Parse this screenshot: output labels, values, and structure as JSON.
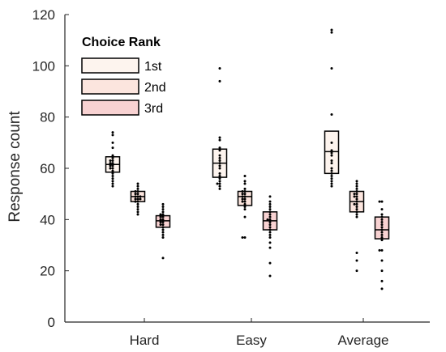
{
  "chart_data": {
    "type": "box",
    "categories": [
      "Hard",
      "Easy",
      "Average"
    ],
    "ylabel": "Response count",
    "xlabel": "",
    "ylim": [
      0,
      120
    ],
    "yticks": [
      0,
      20,
      40,
      60,
      80,
      100,
      120
    ],
    "grid": false,
    "legend": {
      "title": "Choice Rank",
      "position": "top-left",
      "entries": [
        "1st",
        "2nd",
        "3rd"
      ]
    },
    "series": [
      {
        "name": "1st",
        "color": "#fdf4ee",
        "boxes": [
          {
            "q1": 58.5,
            "median": 61.5,
            "q3": 64.5,
            "points": [
              74,
              73,
              70,
              68,
              65,
              64,
              63,
              63,
              62,
              62,
              61,
              61,
              60,
              60,
              59,
              58,
              57,
              56,
              55,
              54,
              53
            ]
          },
          {
            "q1": 56.5,
            "median": 62,
            "q3": 67.5,
            "points": [
              99,
              94,
              72,
              71,
              68,
              67,
              65,
              64,
              63,
              62,
              61,
              60,
              58,
              57,
              56,
              55,
              54,
              54,
              53,
              52
            ]
          },
          {
            "q1": 58,
            "median": 66.5,
            "q3": 74.5,
            "points": [
              114,
              113,
              99,
              81,
              70,
              67,
              66,
              65,
              63,
              62,
              60,
              59,
              58,
              57,
              56,
              55,
              54,
              53
            ]
          }
        ]
      },
      {
        "name": "2nd",
        "color": "#fce5de",
        "boxes": [
          {
            "q1": 47,
            "median": 49,
            "q3": 51,
            "points": [
              54,
              53,
              52,
              51,
              51,
              50,
              50,
              49,
              49,
              49,
              48,
              48,
              48,
              47,
              47,
              46,
              45,
              44,
              43,
              42
            ]
          },
          {
            "q1": 45.5,
            "median": 49,
            "q3": 51,
            "points": [
              57,
              55,
              54,
              52,
              51,
              51,
              50,
              50,
              49,
              49,
              48,
              48,
              47,
              47,
              46,
              45,
              44,
              41,
              33,
              33
            ]
          },
          {
            "q1": 43,
            "median": 47,
            "q3": 51,
            "points": [
              55,
              54,
              53,
              52,
              51,
              50,
              50,
              49,
              49,
              48,
              47,
              46,
              46,
              45,
              44,
              43,
              42,
              41,
              27,
              24,
              20
            ]
          }
        ]
      },
      {
        "name": "3rd",
        "color": "#f8d2d2",
        "boxes": [
          {
            "q1": 37,
            "median": 39.5,
            "q3": 41.5,
            "points": [
              46,
              45,
              44,
              43,
              42,
              42,
              41,
              41,
              40,
              40,
              39,
              39,
              38,
              38,
              37,
              36,
              35,
              34,
              33,
              25
            ]
          },
          {
            "q1": 36,
            "median": 39.5,
            "q3": 43,
            "points": [
              49,
              47,
              46,
              45,
              44,
              43,
              42,
              41,
              40,
              40,
              39,
              38,
              37,
              36,
              35,
              34,
              33,
              31,
              29,
              23,
              18
            ]
          },
          {
            "q1": 32.5,
            "median": 36,
            "q3": 41,
            "points": [
              47,
              47,
              44,
              42,
              41,
              40,
              39,
              38,
              37,
              36,
              35,
              34,
              33,
              32,
              28,
              28,
              24,
              20,
              16,
              13
            ]
          }
        ]
      }
    ]
  }
}
